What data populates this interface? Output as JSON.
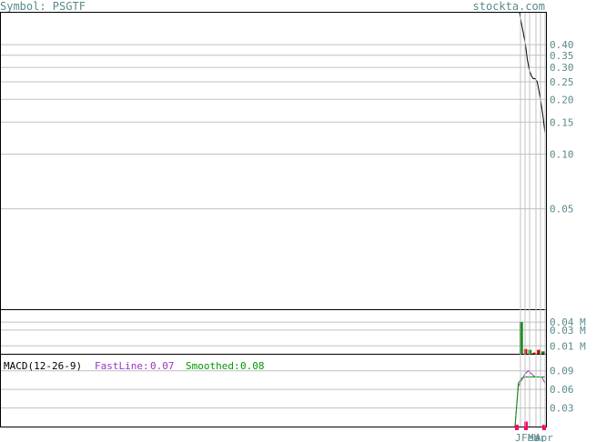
{
  "header": {
    "symbol_label": "Symbol: PSGTF",
    "site_label": "stockta.com"
  },
  "colors": {
    "grid": "#c0c0c0",
    "axis_text": "#5a8a8a",
    "border": "#000000",
    "price_line": "#000000",
    "volume_up": "#008000",
    "volume_down": "#cc0000",
    "macd_fast": "#9933cc",
    "macd_smoothed": "#009900",
    "histogram": "#ff0066"
  },
  "chart_data": [
    {
      "type": "line",
      "panel": "price",
      "scale": "log",
      "y_ticks": [
        0.4,
        0.35,
        0.3,
        0.25,
        0.2,
        0.15,
        0.1,
        0.05
      ],
      "y_tick_labels": [
        "0.40",
        "0.35",
        "0.30",
        "0.25",
        "0.20",
        "0.15",
        "0.10",
        "0.05"
      ],
      "ylim": [
        0.014,
        0.6
      ],
      "series": [
        {
          "values": [
            0.6,
            0.52,
            0.46,
            0.4,
            0.33,
            0.29,
            0.27,
            0.26,
            0.26,
            0.25,
            0.22,
            0.19,
            0.16,
            0.13
          ]
        }
      ],
      "grid": true
    },
    {
      "type": "bar",
      "panel": "volume",
      "y_ticks": [
        0.04,
        0.03,
        0.01
      ],
      "y_tick_labels": [
        "0.04 M",
        "0.03 M",
        "0.01 M"
      ],
      "ylim": [
        0,
        0.055
      ],
      "values": [
        0.04,
        0.006,
        0.005,
        0.0015,
        0.005,
        0.003
      ],
      "directions": [
        "up",
        "down",
        "up",
        "down",
        "down",
        "up"
      ],
      "grid": true
    },
    {
      "type": "line",
      "panel": "macd",
      "legend": {
        "title": "MACD(12-26-9)",
        "fast_label": "FastLine:",
        "fast_value": "0.07",
        "smoothed_label": "Smoothed:",
        "smoothed_value": "0.08"
      },
      "y_ticks": [
        0.09,
        0.06,
        0.03
      ],
      "y_tick_labels": [
        "0.09",
        "0.06",
        "0.03"
      ],
      "ylim": [
        0.0,
        0.116
      ],
      "series": [
        {
          "name": "FastLine",
          "values": [
            0.0,
            0.065,
            0.075,
            0.085,
            0.09,
            0.085,
            0.08,
            0.08,
            0.08,
            0.07
          ]
        },
        {
          "name": "Smoothed",
          "values": [
            0.0,
            0.07,
            0.078,
            0.08,
            0.08,
            0.08,
            0.08,
            0.08,
            0.08,
            0.08
          ]
        }
      ],
      "histogram": [
        0.003,
        0.008,
        0.003
      ],
      "grid": true
    }
  ],
  "x_labels": [
    "J",
    "Feb",
    "Mar",
    "Apr"
  ]
}
